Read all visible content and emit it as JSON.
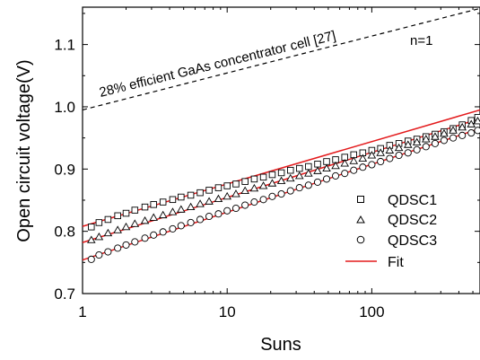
{
  "chart_data": {
    "type": "scatter",
    "title": "",
    "xlabel": "Suns",
    "ylabel": "Open circuit voltage(V)",
    "xscale": "log",
    "xlim": [
      1,
      560
    ],
    "ylim": [
      0.7,
      1.16
    ],
    "xticks": [
      1,
      10,
      100
    ],
    "xtick_labels": [
      "1",
      "10",
      "100"
    ],
    "yticks": [
      0.7,
      0.8,
      0.9,
      1.0,
      1.1
    ],
    "ytick_labels": [
      "0.7",
      "0.8",
      "0.9",
      "1.0",
      "1.1"
    ],
    "grid": false,
    "legend_position": "bottom-right",
    "annotations": [
      "28% efficient GaAs concentrator cell [27]",
      "n=1"
    ],
    "reference_line": {
      "style": "dashed",
      "color": "#000000",
      "x": [
        1,
        560
      ],
      "y": [
        0.995,
        1.158
      ]
    },
    "series": [
      {
        "name": "QDSC1",
        "marker": "square",
        "x": [
          1.15,
          1.3,
          1.5,
          1.75,
          2.0,
          2.3,
          2.7,
          3.1,
          3.6,
          4.2,
          4.8,
          5.6,
          6.5,
          7.5,
          8.7,
          10,
          11.5,
          13.3,
          15.4,
          17.8,
          20.5,
          23.7,
          27.4,
          31.6,
          36.5,
          42.2,
          48.7,
          56.2,
          65,
          75,
          86.6,
          100,
          115,
          133,
          154,
          178,
          205,
          237,
          274,
          316,
          365,
          422,
          487,
          540
        ],
        "y": [
          0.807,
          0.814,
          0.819,
          0.825,
          0.829,
          0.834,
          0.839,
          0.843,
          0.847,
          0.851,
          0.855,
          0.858,
          0.862,
          0.866,
          0.87,
          0.873,
          0.876,
          0.88,
          0.884,
          0.887,
          0.891,
          0.894,
          0.898,
          0.901,
          0.904,
          0.908,
          0.912,
          0.915,
          0.919,
          0.923,
          0.926,
          0.93,
          0.933,
          0.938,
          0.941,
          0.945,
          0.948,
          0.952,
          0.956,
          0.96,
          0.965,
          0.971,
          0.978,
          0.983
        ]
      },
      {
        "name": "QDSC2",
        "marker": "triangle",
        "x": [
          1.15,
          1.3,
          1.5,
          1.75,
          2.0,
          2.3,
          2.7,
          3.1,
          3.6,
          4.2,
          4.8,
          5.6,
          6.5,
          7.5,
          8.7,
          10,
          11.5,
          13.3,
          15.4,
          17.8,
          20.5,
          23.7,
          27.4,
          31.6,
          36.5,
          42.2,
          48.7,
          56.2,
          65,
          75,
          86.6,
          100,
          115,
          133,
          154,
          178,
          205,
          237,
          274,
          316,
          365,
          422,
          487,
          540
        ],
        "y": [
          0.786,
          0.791,
          0.797,
          0.802,
          0.807,
          0.812,
          0.817,
          0.822,
          0.826,
          0.831,
          0.835,
          0.839,
          0.844,
          0.848,
          0.852,
          0.856,
          0.86,
          0.865,
          0.869,
          0.873,
          0.877,
          0.881,
          0.885,
          0.889,
          0.893,
          0.897,
          0.901,
          0.905,
          0.909,
          0.913,
          0.917,
          0.922,
          0.926,
          0.93,
          0.934,
          0.939,
          0.943,
          0.948,
          0.952,
          0.957,
          0.962,
          0.967,
          0.972,
          0.977
        ]
      },
      {
        "name": "QDSC3",
        "marker": "circle",
        "x": [
          1.15,
          1.3,
          1.5,
          1.75,
          2.0,
          2.3,
          2.7,
          3.1,
          3.6,
          4.2,
          4.8,
          5.6,
          6.5,
          7.5,
          8.7,
          10,
          11.5,
          13.3,
          15.4,
          17.8,
          20.5,
          23.7,
          27.4,
          31.6,
          36.5,
          42.2,
          48.7,
          56.2,
          65,
          75,
          86.6,
          100,
          115,
          133,
          154,
          178,
          205,
          237,
          274,
          316,
          365,
          422,
          487,
          540
        ],
        "y": [
          0.755,
          0.762,
          0.767,
          0.773,
          0.778,
          0.783,
          0.789,
          0.794,
          0.799,
          0.804,
          0.809,
          0.814,
          0.819,
          0.824,
          0.828,
          0.833,
          0.837,
          0.842,
          0.847,
          0.851,
          0.856,
          0.86,
          0.865,
          0.87,
          0.874,
          0.879,
          0.884,
          0.889,
          0.893,
          0.898,
          0.903,
          0.907,
          0.912,
          0.917,
          0.922,
          0.926,
          0.931,
          0.936,
          0.941,
          0.946,
          0.95,
          0.954,
          0.958,
          0.962
        ]
      },
      {
        "name": "Fit",
        "marker": "line",
        "color": "#e31a1c",
        "lines": [
          {
            "for": "QDSC1",
            "x": [
              1,
              560
            ],
            "y": [
              0.808,
              0.995
            ]
          },
          {
            "for": "QDSC2",
            "x": [
              1,
              560
            ],
            "y": [
              0.782,
              0.981
            ]
          },
          {
            "for": "QDSC3",
            "x": [
              1,
              560
            ],
            "y": [
              0.754,
              0.965
            ]
          }
        ]
      }
    ]
  }
}
